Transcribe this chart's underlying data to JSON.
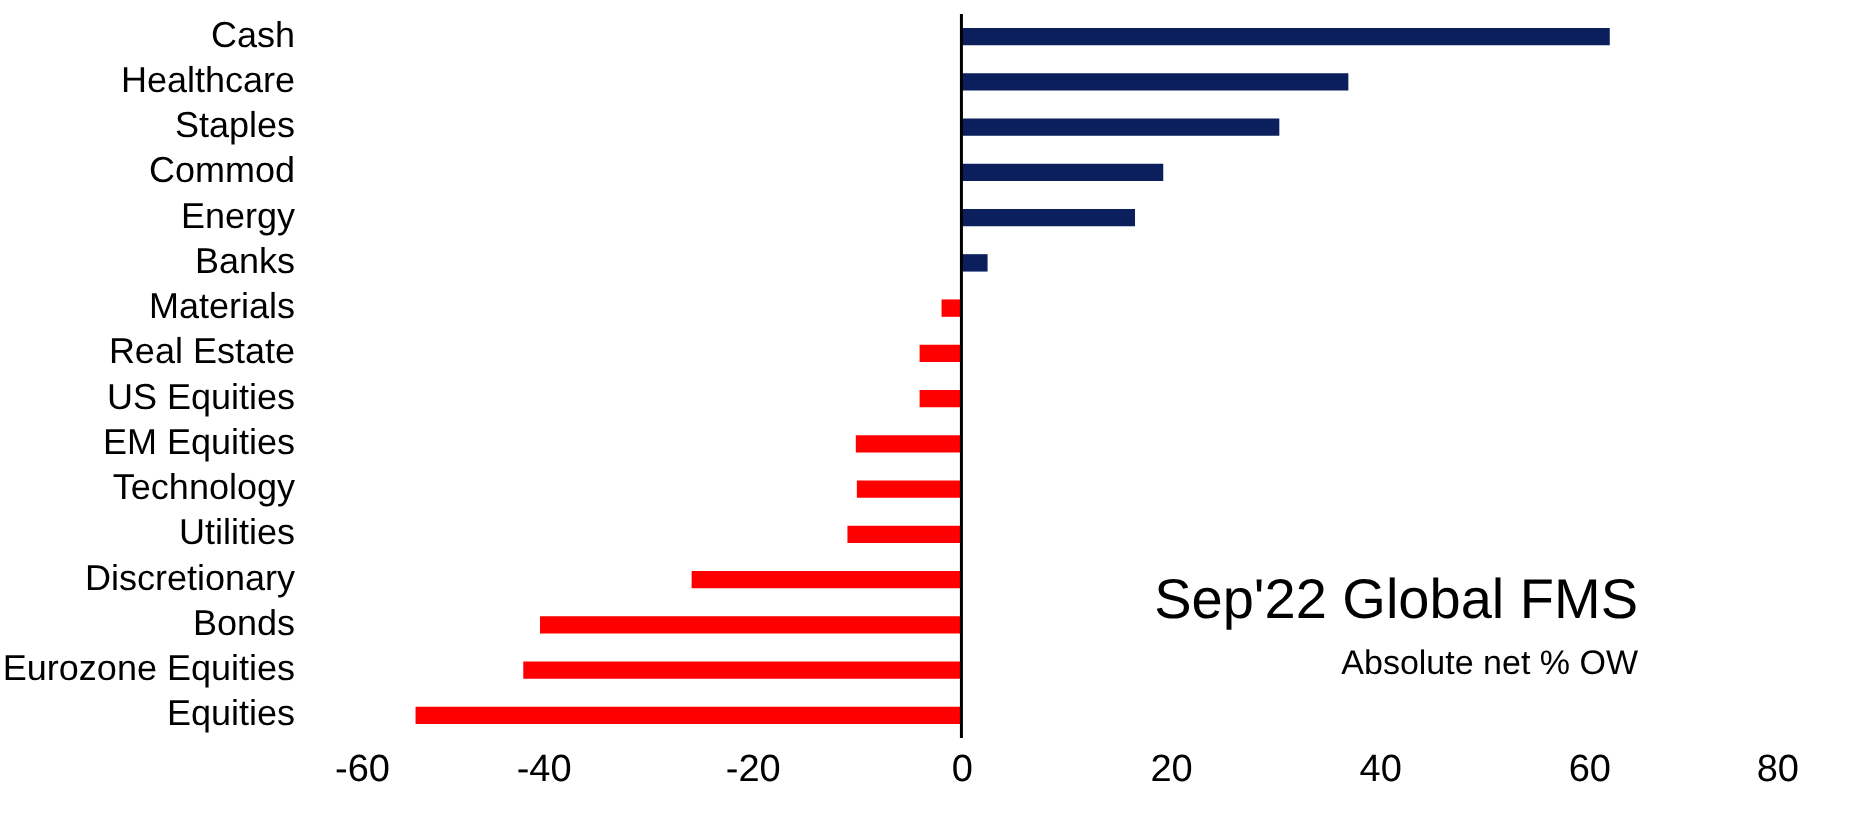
{
  "chart_data": {
    "type": "bar",
    "orientation": "horizontal",
    "title": "Sep'22 Global FMS",
    "subtitle": "Absolute net % OW",
    "categories": [
      "Cash",
      "Healthcare",
      "Staples",
      "Commod",
      "Energy",
      "Banks",
      "Materials",
      "Real Estate",
      "US Equities",
      "EM Equities",
      "Technology",
      "Utilities",
      "Discretionary",
      "Bonds",
      "Eurozone Equities",
      "Equities"
    ],
    "values": [
      62,
      37,
      30.4,
      19.3,
      16.6,
      2.5,
      -1.9,
      -4,
      -4,
      -10.1,
      -10,
      -10.9,
      -25.8,
      -40.3,
      -41.9,
      -52.2
    ],
    "colors": [
      "#0a1f5c",
      "#0a1f5c",
      "#0a1f5c",
      "#0a1f5c",
      "#0a1f5c",
      "#0a1f5c",
      "#ff0000",
      "#ff0000",
      "#ff0000",
      "#ff0000",
      "#ff0000",
      "#ff0000",
      "#ff0000",
      "#ff0000",
      "#ff0000",
      "#ff0000"
    ],
    "xlim": [
      -60,
      80
    ],
    "xticks": [
      -60,
      -40,
      -20,
      0,
      20,
      40,
      60,
      80
    ],
    "grid": false,
    "ref_lines": [
      {
        "axis": "x",
        "value": 0,
        "color": "#000000"
      }
    ]
  }
}
